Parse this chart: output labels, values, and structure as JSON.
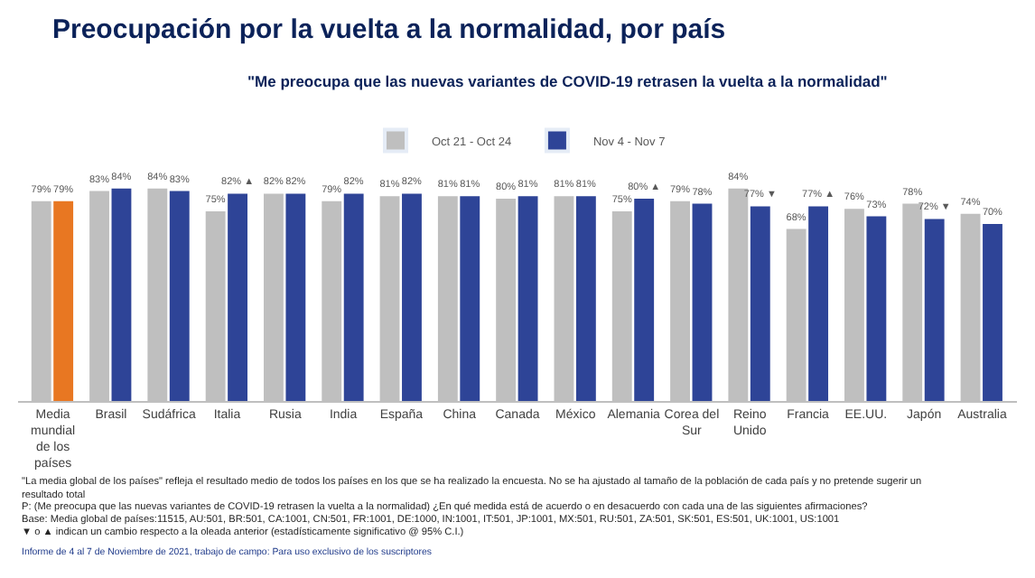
{
  "chart_data": {
    "type": "bar",
    "title": "Preocupación por la vuelta a la normalidad, por país",
    "subtitle": "\"Me preocupa que las nuevas variantes de COVID-19 retrasen la vuelta a la normalidad\"",
    "categories": [
      "Media mundial de los países",
      "Brasil",
      "Sudáfrica",
      "Italia",
      "Rusia",
      "India",
      "España",
      "China",
      "Canada",
      "México",
      "Alemania",
      "Corea del Sur",
      "Reino Unido",
      "Francia",
      "EE.UU.",
      "Japón",
      "Australia"
    ],
    "series": [
      {
        "name": "Oct 21 - Oct 24",
        "color": "#bfbfbf",
        "values": [
          79,
          83,
          84,
          75,
          82,
          79,
          81,
          81,
          80,
          81,
          75,
          79,
          84,
          68,
          76,
          78,
          74
        ],
        "value_labels": [
          "79%",
          "83%",
          "84%",
          "75%",
          "82%",
          "79%",
          "81%",
          "81%",
          "80%",
          "81%",
          "75%",
          "79%",
          "84%",
          "68%",
          "76%",
          "78%",
          "74%"
        ]
      },
      {
        "name": "Nov 4 - Nov 7",
        "color": "#2e4497",
        "colors": [
          "#e87722",
          "#2e4497",
          "#2e4497",
          "#2e4497",
          "#2e4497",
          "#2e4497",
          "#2e4497",
          "#2e4497",
          "#2e4497",
          "#2e4497",
          "#2e4497",
          "#2e4497",
          "#2e4497",
          "#2e4497",
          "#2e4497",
          "#2e4497",
          "#2e4497"
        ],
        "values": [
          79,
          84,
          83,
          82,
          82,
          82,
          82,
          81,
          81,
          81,
          80,
          78,
          77,
          77,
          73,
          72,
          70
        ],
        "value_labels": [
          "79%",
          "84%",
          "83%",
          "82% ▲",
          "82%",
          "82%",
          "82%",
          "81%",
          "81%",
          "81%",
          "80% ▲",
          "78%",
          "77% ▼",
          "77% ▲",
          "73%",
          "72% ▼",
          "70%"
        ]
      }
    ],
    "legend": "top",
    "annotations": [
      "\"La media global de los países\" refleja el resultado medio de todos los países en los que se ha realizado la encuesta. No se ha ajustado al tamaño de la población de cada país y no pretende sugerir un resultado total",
      "P: (Me preocupa que las nuevas variantes de COVID-19 retrasen la vuelta a la normalidad) ¿En qué medida está de acuerdo o en desacuerdo con cada una de las siguientes afirmaciones?",
      "Base: Media global de países:11515, AU:501, BR:501, CA:1001, CN:501, FR:1001, DE:1000, IN:1001, IT:501, JP:1001, MX:501, RU:501, ZA:501, SK:501, ES:501, UK:1001, US:1001",
      "▼ o ▲ indican un cambio respecto a la oleada anterior (estadísticamente significativo @ 95% C.I.)",
      "Informe de 4 al 7 de Noviembre de 2021, trabajo de campo: Para uso exclusivo de los suscriptores"
    ]
  }
}
